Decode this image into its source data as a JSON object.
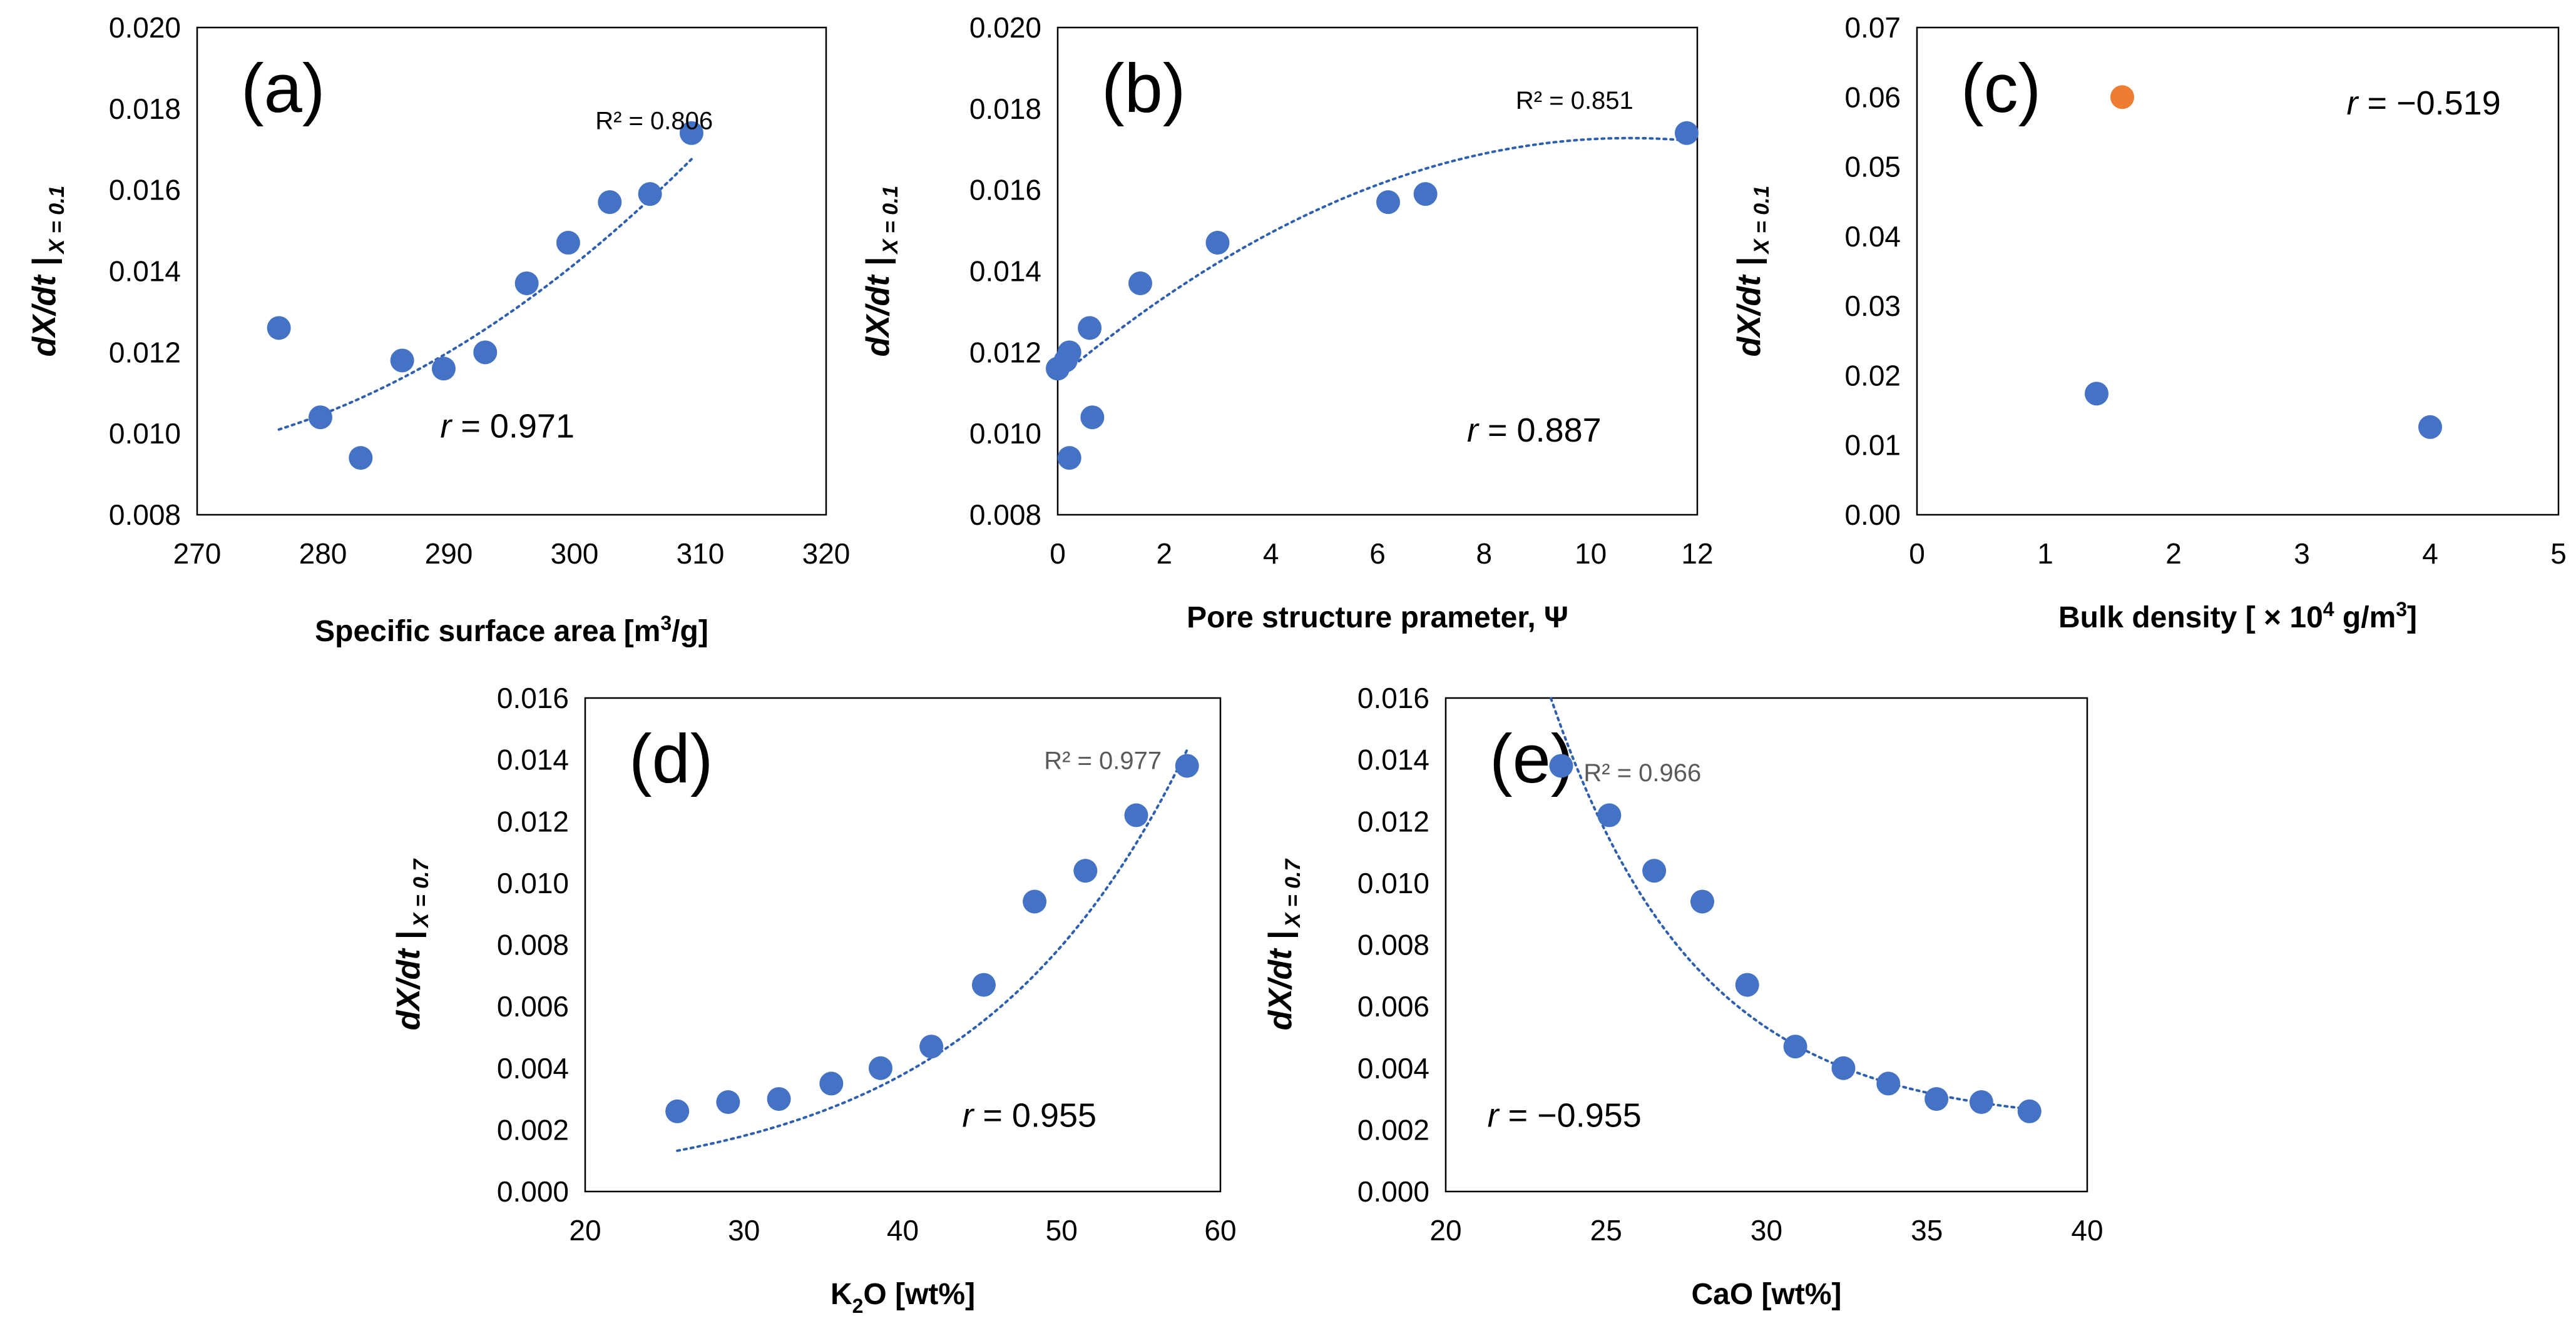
{
  "colors": {
    "point": "#4472C4",
    "highlight": "#ED7D31",
    "trendline": "#2E5FAD",
    "axis": "#000000",
    "r2_text_light": "#595959"
  },
  "chart_data": [
    {
      "id": "a",
      "type": "scatter",
      "panel_label": "(a)",
      "xlabel": "Specific surface area [m",
      "xlabel_sup": "3",
      "xlabel_tail": "/g]",
      "ylabel_main": "dX/dt |",
      "ylabel_sub": "X = 0.1",
      "xlim": [
        270,
        320
      ],
      "ylim": [
        0.008,
        0.02
      ],
      "xticks": [
        "270",
        "280",
        "290",
        "300",
        "310",
        "320"
      ],
      "yticks": [
        "0.008",
        "0.010",
        "0.012",
        "0.014",
        "0.016",
        "0.018",
        "0.020"
      ],
      "r_prefix": "r",
      "r_value": " = 0.971",
      "r2_label": "R² = 0.806",
      "r2_pos": [
        311,
        0.0175
      ],
      "r_pos": [
        300,
        0.0099
      ],
      "points": [
        {
          "x": 276.5,
          "y": 0.0126
        },
        {
          "x": 279.8,
          "y": 0.0104
        },
        {
          "x": 283.0,
          "y": 0.0094
        },
        {
          "x": 286.3,
          "y": 0.0118
        },
        {
          "x": 289.6,
          "y": 0.0116
        },
        {
          "x": 292.9,
          "y": 0.012
        },
        {
          "x": 296.2,
          "y": 0.0137
        },
        {
          "x": 299.5,
          "y": 0.0147
        },
        {
          "x": 302.8,
          "y": 0.0157
        },
        {
          "x": 306.0,
          "y": 0.0159
        },
        {
          "x": 309.3,
          "y": 0.0174
        }
      ],
      "trend": {
        "kind": "poly",
        "coefficients": [
          0.0101,
          9.8e-05,
          3.2e-06
        ],
        "x_origin": 276.5,
        "x_range": [
          276.5,
          309.3
        ]
      }
    },
    {
      "id": "b",
      "type": "scatter",
      "panel_label": "(b)",
      "xlabel": "Pore structure prameter, Ψ",
      "ylabel_main": "dX/dt |",
      "ylabel_sub": "X = 0.1",
      "xlim": [
        0,
        12
      ],
      "ylim": [
        0.008,
        0.02
      ],
      "xticks": [
        "0",
        "2",
        "4",
        "6",
        "8",
        "10",
        "12"
      ],
      "yticks": [
        "0.008",
        "0.010",
        "0.012",
        "0.014",
        "0.016",
        "0.018",
        "0.020"
      ],
      "r_prefix": "r",
      "r_value": " = 0.887",
      "r2_label": "R² = 0.851",
      "r2_pos": [
        10.8,
        0.018
      ],
      "r_pos": [
        10.2,
        0.0098
      ],
      "points": [
        {
          "x": 0.0,
          "y": 0.0116
        },
        {
          "x": 0.15,
          "y": 0.0118
        },
        {
          "x": 0.22,
          "y": 0.012
        },
        {
          "x": 0.22,
          "y": 0.0094
        },
        {
          "x": 0.6,
          "y": 0.0126
        },
        {
          "x": 0.65,
          "y": 0.0104
        },
        {
          "x": 1.55,
          "y": 0.0137
        },
        {
          "x": 3.0,
          "y": 0.0147
        },
        {
          "x": 6.2,
          "y": 0.0157
        },
        {
          "x": 6.9,
          "y": 0.0159
        },
        {
          "x": 11.8,
          "y": 0.0174
        }
      ],
      "trend": {
        "kind": "poly",
        "coefficients": [
          0.01135,
          0.001105,
          -5.15e-05
        ],
        "x_origin": 0,
        "x_range": [
          0,
          11.8
        ]
      }
    },
    {
      "id": "c",
      "type": "scatter",
      "panel_label": "(c)",
      "xlabel": "Bulk density [ × 10",
      "xlabel_sup": "4",
      "xlabel_tail": " g/m",
      "xlabel_sup2": "3",
      "xlabel_tail2": "]",
      "ylabel_main": "dX/dt |",
      "ylabel_sub": "X = 0.1",
      "xlim": [
        0,
        5
      ],
      "ylim": [
        0,
        0.07
      ],
      "xticks": [
        "0",
        "1",
        "2",
        "3",
        "4",
        "5"
      ],
      "yticks": [
        "0.00",
        "0.01",
        "0.02",
        "0.03",
        "0.04",
        "0.05",
        "0.06",
        "0.07"
      ],
      "r_prefix": "r",
      "r_value": " = −0.519",
      "r_pos": [
        4.55,
        0.0575
      ],
      "points": [
        {
          "x": 1.4,
          "y": 0.0174
        },
        {
          "x": 1.6,
          "y": 0.06,
          "highlight": true
        },
        {
          "x": 4.0,
          "y": 0.0126
        }
      ]
    },
    {
      "id": "d",
      "type": "scatter",
      "panel_label": "(d)",
      "xlabel": "K",
      "xlabel_sub": "2",
      "xlabel_tail": "O [wt%]",
      "ylabel_main": "dX/dt |",
      "ylabel_sub": "X = 0.7",
      "xlim": [
        20,
        60
      ],
      "ylim": [
        0,
        0.016
      ],
      "xticks": [
        "20",
        "30",
        "40",
        "50",
        "60"
      ],
      "yticks": [
        "0.000",
        "0.002",
        "0.004",
        "0.006",
        "0.008",
        "0.010",
        "0.012",
        "0.014",
        "0.016"
      ],
      "r_prefix": "r",
      "r_value": " = 0.955",
      "r2_label": "R² = 0.977",
      "r2_pos": [
        56.3,
        0.0137
      ],
      "r_pos": [
        52.2,
        0.0021
      ],
      "r2_light": true,
      "points": [
        {
          "x": 25.8,
          "y": 0.0026
        },
        {
          "x": 29.0,
          "y": 0.0029
        },
        {
          "x": 32.2,
          "y": 0.003
        },
        {
          "x": 35.5,
          "y": 0.0035
        },
        {
          "x": 38.6,
          "y": 0.004
        },
        {
          "x": 41.8,
          "y": 0.0047
        },
        {
          "x": 45.1,
          "y": 0.0067
        },
        {
          "x": 48.3,
          "y": 0.0094
        },
        {
          "x": 51.5,
          "y": 0.0104
        },
        {
          "x": 54.7,
          "y": 0.0122
        },
        {
          "x": 57.9,
          "y": 0.0138
        }
      ],
      "trend": {
        "kind": "exp",
        "a": 0.000195,
        "b": 0.0742,
        "x_range": [
          25.8,
          57.9
        ]
      }
    },
    {
      "id": "e",
      "type": "scatter",
      "panel_label": "(e)",
      "xlabel": "CaO [wt%]",
      "ylabel_main": "dX/dt |",
      "ylabel_sub": "X = 0.7",
      "xlim": [
        20,
        40
      ],
      "ylim": [
        0,
        0.016
      ],
      "xticks": [
        "20",
        "25",
        "30",
        "35",
        "40"
      ],
      "yticks": [
        "0.000",
        "0.002",
        "0.004",
        "0.006",
        "0.008",
        "0.010",
        "0.012",
        "0.014",
        "0.016"
      ],
      "r_prefix": "r",
      "r_value": " = −0.955",
      "r2_label": "R² = 0.966",
      "r2_pos": [
        24.3,
        0.0133
      ],
      "r_pos": [
        21.3,
        0.0021
      ],
      "r2_light": true,
      "r2_anchor": "start",
      "r_anchor": "start",
      "points": [
        {
          "x": 23.6,
          "y": 0.0138
        },
        {
          "x": 25.1,
          "y": 0.0122
        },
        {
          "x": 26.5,
          "y": 0.0104
        },
        {
          "x": 28.0,
          "y": 0.0094
        },
        {
          "x": 29.4,
          "y": 0.0067
        },
        {
          "x": 30.9,
          "y": 0.0047
        },
        {
          "x": 32.4,
          "y": 0.004
        },
        {
          "x": 33.8,
          "y": 0.0035
        },
        {
          "x": 35.3,
          "y": 0.003
        },
        {
          "x": 36.7,
          "y": 0.0029
        },
        {
          "x": 38.2,
          "y": 0.0026
        }
      ],
      "trend": {
        "kind": "exp_decay",
        "floor": 0.00215,
        "a": 0.0129,
        "b": 0.2195,
        "x_origin": 23.6,
        "x_range": [
          23.6,
          38.2
        ]
      }
    }
  ]
}
